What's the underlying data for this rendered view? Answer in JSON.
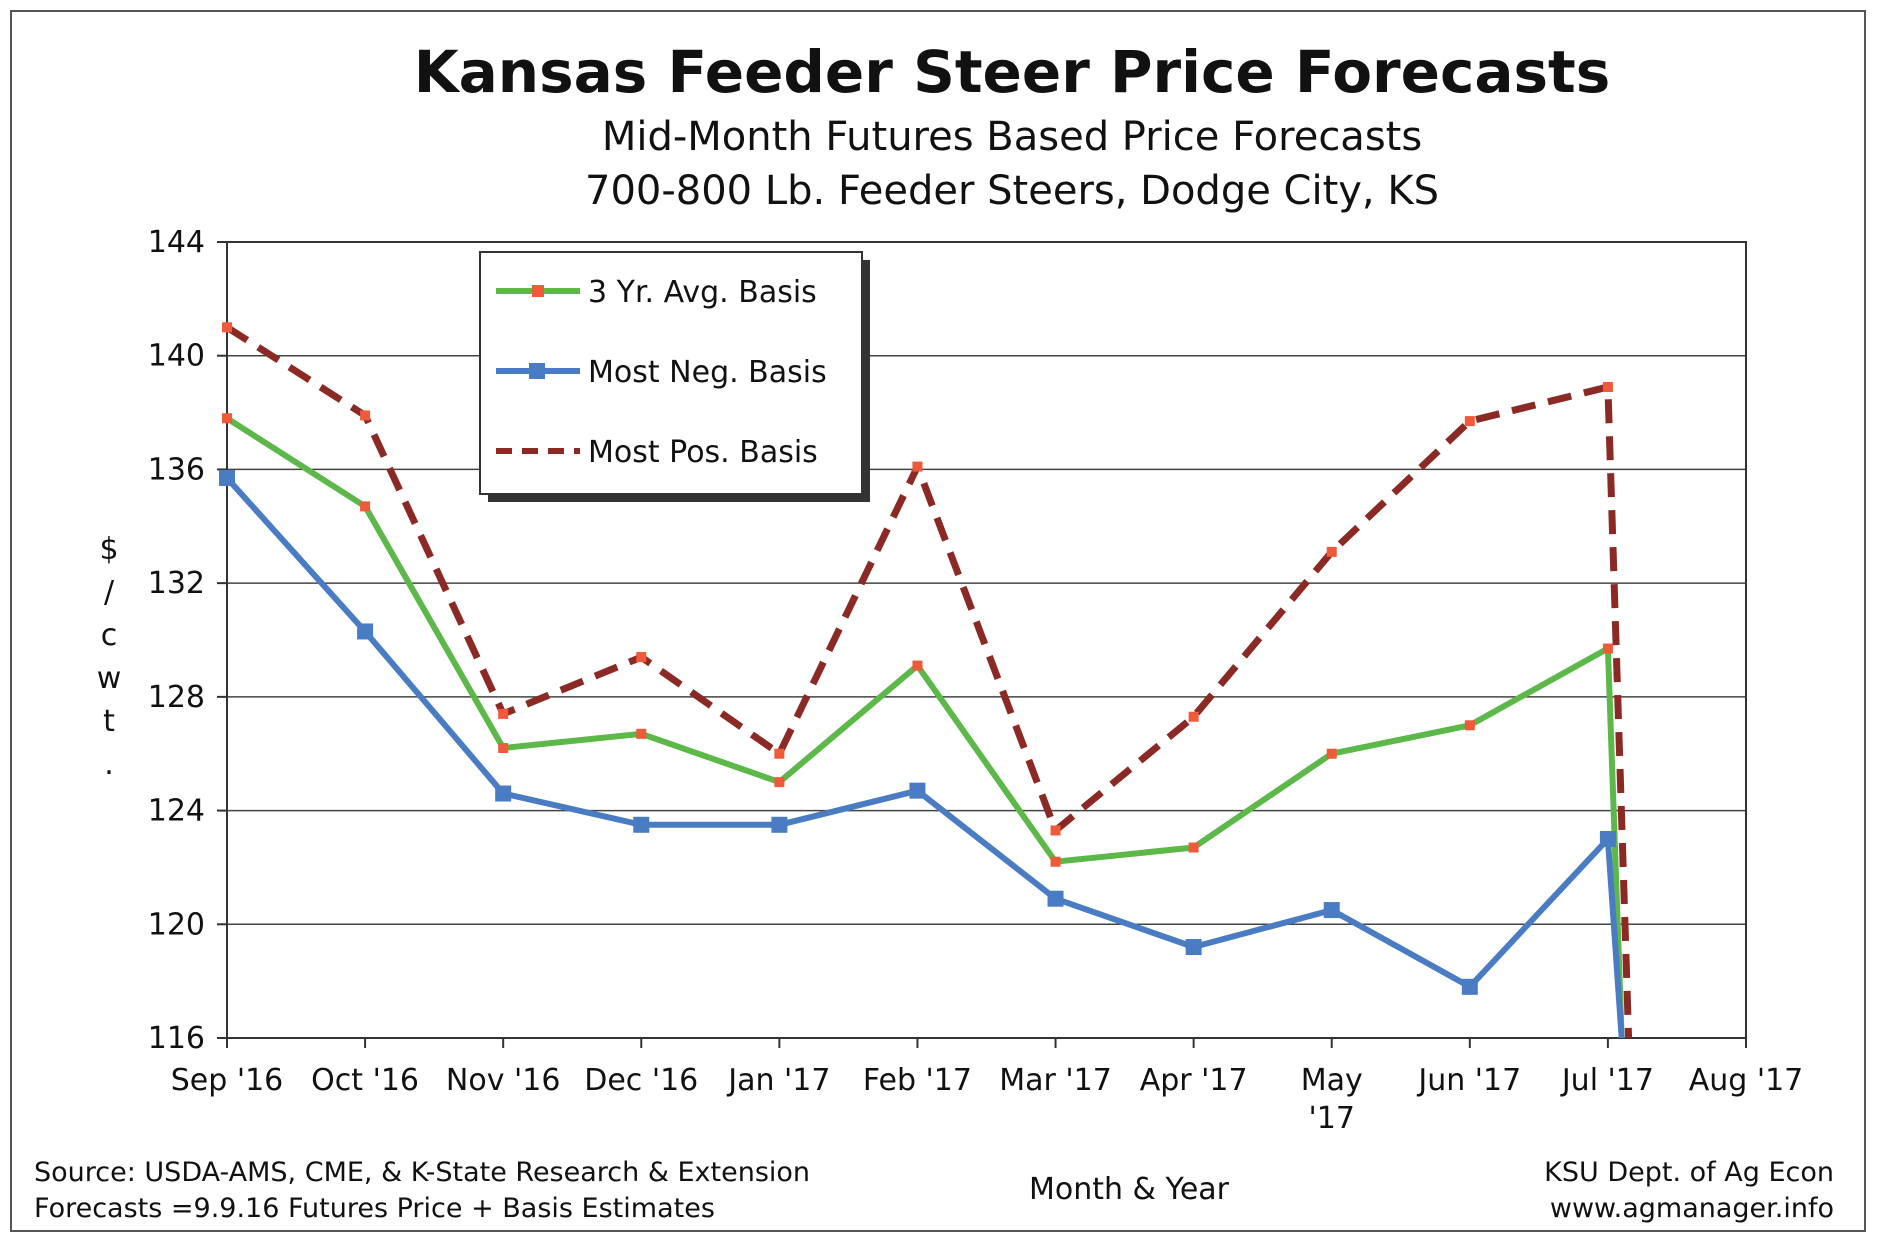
{
  "chart_data": {
    "type": "line",
    "title": "Kansas Feeder Steer Price Forecasts",
    "subtitle_lines": [
      "Mid-Month Futures Based Price Forecasts",
      "700-800 Lb. Feeder Steers, Dodge City, KS"
    ],
    "xlabel": "Month & Year",
    "ylabel_chars": [
      "$",
      "/",
      "c",
      "w",
      "t",
      "."
    ],
    "categories": [
      [
        "Sep '16"
      ],
      [
        "Oct '16"
      ],
      [
        "Nov '16"
      ],
      [
        "Dec '16"
      ],
      [
        "Jan '17"
      ],
      [
        "Feb '17"
      ],
      [
        "Mar '17"
      ],
      [
        "Apr '17"
      ],
      [
        "May",
        "'17"
      ],
      [
        "Jun '17"
      ],
      [
        "Jul '17"
      ],
      [
        "Aug '17"
      ]
    ],
    "ylim": [
      116,
      144
    ],
    "yticks": [
      116,
      120,
      124,
      128,
      132,
      136,
      140,
      144
    ],
    "grid": true,
    "legend_position": "top-left",
    "series": [
      {
        "name": "3 Yr. Avg. Basis",
        "color": "#5cb848",
        "marker_color": "#ee5a3a",
        "style": "solid",
        "marker": "small-square",
        "points": [
          [
            0,
            137.8
          ],
          [
            1,
            134.7
          ],
          [
            2,
            126.2
          ],
          [
            3,
            126.7
          ],
          [
            4,
            125.0
          ],
          [
            5,
            129.1
          ],
          [
            6,
            122.2
          ],
          [
            7,
            122.7
          ],
          [
            8,
            126.0
          ],
          [
            9,
            127.0
          ],
          [
            10,
            129.7
          ],
          [
            10.1,
            116
          ]
        ]
      },
      {
        "name": "Most Neg. Basis",
        "color": "#4a7cc4",
        "marker_color": "#4a7cc4",
        "style": "solid",
        "marker": "square",
        "points": [
          [
            0,
            135.7
          ],
          [
            1,
            130.3
          ],
          [
            2,
            124.6
          ],
          [
            3,
            123.5
          ],
          [
            4,
            123.5
          ],
          [
            5,
            124.7
          ],
          [
            6,
            120.9
          ],
          [
            7,
            119.2
          ],
          [
            8,
            120.5
          ],
          [
            9,
            117.8
          ],
          [
            10,
            123.0
          ],
          [
            10.1,
            116
          ]
        ]
      },
      {
        "name": "Most Pos. Basis",
        "color": "#8b2a24",
        "marker_color": "#ee5a3a",
        "style": "dashed",
        "marker": "small-square",
        "points": [
          [
            0,
            141.0
          ],
          [
            1,
            137.9
          ],
          [
            2,
            127.4
          ],
          [
            3,
            129.4
          ],
          [
            4,
            126.0
          ],
          [
            5,
            136.1
          ],
          [
            6,
            123.3
          ],
          [
            7,
            127.3
          ],
          [
            8,
            133.1
          ],
          [
            9,
            137.7
          ],
          [
            10,
            138.9
          ],
          [
            10.15,
            116
          ]
        ]
      }
    ]
  },
  "footer": {
    "source_line1": "Source:  USDA-AMS, CME, & K-State Research & Extension",
    "source_line2": "Forecasts =9.9.16 Futures Price + Basis Estimates",
    "credit_line1": "KSU Dept. of Ag Econ",
    "credit_line2": "www.agmanager.info"
  }
}
